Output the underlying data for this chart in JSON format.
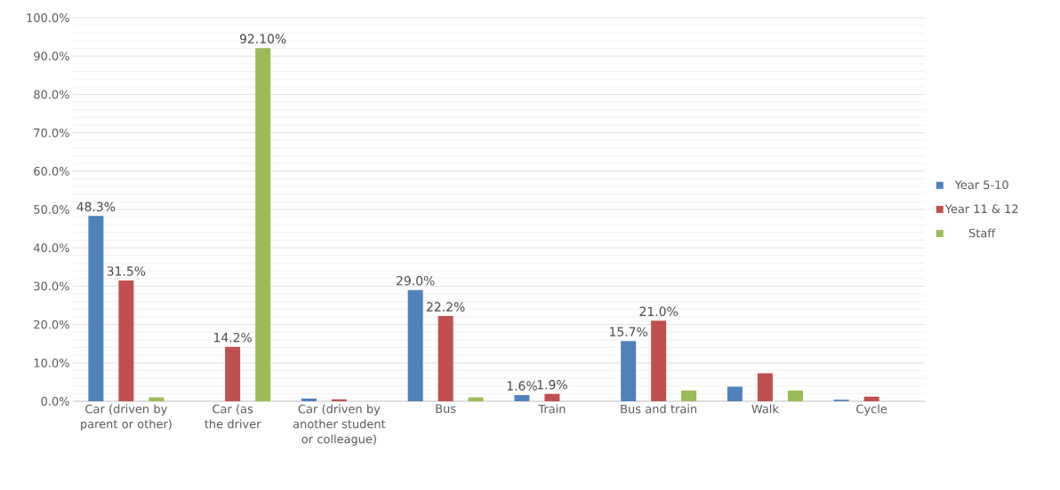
{
  "chart_data": {
    "type": "bar",
    "categories": [
      "Car (driven by parent or other)",
      "Car (as the driver",
      "Car (driven by another student or colleague)",
      "Bus",
      "Train",
      "Bus and train",
      "Walk",
      "Cycle"
    ],
    "series": [
      {
        "name": "Year 5-10",
        "color": "#4f81bd",
        "values": [
          48.3,
          null,
          0.7,
          29.0,
          1.6,
          15.7,
          3.8,
          0.4
        ],
        "value_labels": [
          "48.3%",
          null,
          null,
          "29.0%",
          "1.6%",
          "15.7%",
          null,
          null
        ]
      },
      {
        "name": "Year 11 & 12",
        "color": "#c0504d",
        "values": [
          31.5,
          14.2,
          0.5,
          22.2,
          1.9,
          21.0,
          7.3,
          1.2
        ],
        "value_labels": [
          "31.5%",
          "14.2%",
          null,
          "22.2%",
          "1.9%",
          "21.0%",
          null,
          null
        ]
      },
      {
        "name": "Staff",
        "color": "#9bbb59",
        "values": [
          1.0,
          92.1,
          null,
          1.0,
          null,
          2.8,
          2.8,
          null
        ],
        "value_labels": [
          null,
          "92.10%",
          null,
          null,
          null,
          null,
          null,
          null
        ]
      }
    ],
    "ylim": [
      0,
      100
    ],
    "yticks": [
      {
        "value": 0,
        "label": "0.0%"
      },
      {
        "value": 10,
        "label": "10.0%"
      },
      {
        "value": 20,
        "label": "20.0%"
      },
      {
        "value": 30,
        "label": "30.0%"
      },
      {
        "value": 40,
        "label": "40.0%"
      },
      {
        "value": 50,
        "label": "50.0%"
      },
      {
        "value": 60,
        "label": "60.0%"
      },
      {
        "value": 70,
        "label": "70.0%"
      },
      {
        "value": 80,
        "label": "80.0%"
      },
      {
        "value": 90,
        "label": "90.0%"
      },
      {
        "value": 100,
        "label": "100.0%"
      }
    ],
    "grid": "y",
    "legend": "right"
  }
}
